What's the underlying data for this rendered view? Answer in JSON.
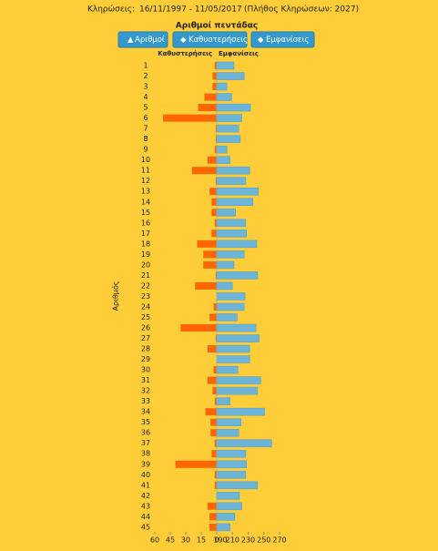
{
  "header": {
    "label": "Κληρώσεις:",
    "period": "16/11/1997 - 11/05/2017",
    "count": "(Πλήθος Κληρώσεων: 2027)"
  },
  "buttons": [
    "Αριθμοί",
    "Καθυστερήσεις",
    "Εμφανίσεις"
  ],
  "chart_data": {
    "type": "butterfly",
    "title": "Αριθμοί πεντάδας",
    "y_label": "Αριθμός",
    "categories": [
      "1",
      "2",
      "3",
      "4",
      "5",
      "6",
      "7",
      "8",
      "9",
      "10",
      "11",
      "12",
      "13",
      "14",
      "15",
      "16",
      "17",
      "18",
      "19",
      "20",
      "21",
      "22",
      "23",
      "24",
      "25",
      "26",
      "27",
      "28",
      "29",
      "30",
      "31",
      "32",
      "33",
      "34",
      "35",
      "36",
      "37",
      "38",
      "39",
      "40",
      "41",
      "42",
      "43",
      "44",
      "45"
    ],
    "series": [
      {
        "name": "Καθυστερήσεις",
        "color": "#ff6600",
        "side": "left",
        "xlim": [
          0,
          60
        ],
        "xticks": [
          60,
          45,
          30,
          15,
          0
        ],
        "values": [
          2,
          4,
          4,
          12,
          18,
          52,
          1,
          1,
          2,
          9,
          24,
          1,
          7,
          5,
          5,
          2,
          5,
          19,
          13,
          13,
          1,
          21,
          0,
          3,
          7,
          35,
          1,
          9,
          0,
          3,
          9,
          4,
          2,
          11,
          6,
          6,
          2,
          5,
          40,
          2,
          2,
          0,
          9,
          7,
          7
        ]
      },
      {
        "name": "Εμφανίσεις",
        "color": "#6cb4d8",
        "side": "right",
        "xlim": [
          190,
          270
        ],
        "xticks": [
          190,
          210,
          230,
          250,
          270
        ],
        "values": [
          212,
          225,
          203,
          209,
          233,
          222,
          218,
          220,
          203,
          207,
          232,
          227,
          243,
          236,
          214,
          227,
          228,
          241,
          225,
          212,
          242,
          210,
          226,
          225,
          216,
          240,
          244,
          232,
          232,
          217,
          246,
          242,
          207,
          251,
          221,
          218,
          260,
          227,
          228,
          227,
          242,
          219,
          222,
          213,
          207
        ]
      }
    ]
  }
}
